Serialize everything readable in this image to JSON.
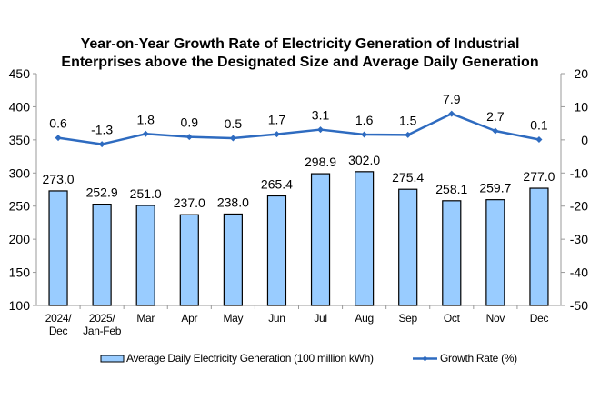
{
  "chart_data": {
    "type": "bar+line",
    "title": [
      "Year-on-Year Growth Rate of Electricity Generation of Industrial",
      "Enterprises above the Designated Size and Average Daily Generation"
    ],
    "categories": [
      [
        "2024/",
        "Dec"
      ],
      [
        "2025/",
        "Jan-Feb"
      ],
      [
        "Mar"
      ],
      [
        "Apr"
      ],
      [
        "May"
      ],
      [
        "Jun"
      ],
      [
        "Jul"
      ],
      [
        "Aug"
      ],
      [
        "Sep"
      ],
      [
        "Oct"
      ],
      [
        "Nov"
      ],
      [
        "Dec"
      ]
    ],
    "series": [
      {
        "name": "Average Daily Electricity Generation (100 million kWh)",
        "type": "bar",
        "axis": "left",
        "values": [
          273.0,
          252.9,
          251.0,
          237.0,
          238.0,
          265.4,
          298.9,
          302.0,
          275.4,
          258.1,
          259.7,
          277.0
        ],
        "labels": [
          "273.0",
          "252.9",
          "251.0",
          "237.0",
          "238.0",
          "265.4",
          "298.9",
          "302.0",
          "275.4",
          "258.1",
          "259.7",
          "277.0"
        ],
        "color": "#99ccff"
      },
      {
        "name": "Growth Rate (%)",
        "type": "line",
        "axis": "right",
        "values": [
          0.6,
          -1.3,
          1.8,
          0.9,
          0.5,
          1.7,
          3.1,
          1.6,
          1.5,
          7.9,
          2.7,
          0.1
        ],
        "labels": [
          "0.6",
          "-1.3",
          "1.8",
          "0.9",
          "0.5",
          "1.7",
          "3.1",
          "1.6",
          "1.5",
          "7.9",
          "2.7",
          "0.1"
        ],
        "color": "#2e6bc0"
      }
    ],
    "y_left": {
      "range": [
        100,
        450
      ],
      "ticks": [
        "450",
        "400",
        "350",
        "300",
        "250",
        "200",
        "150",
        "100"
      ]
    },
    "y_right": {
      "range": [
        -50,
        20
      ],
      "ticks": [
        "20",
        "10",
        "0",
        "-10",
        "-20",
        "-30",
        "-40",
        "-50"
      ]
    },
    "grid": false,
    "legend": "bottom"
  }
}
